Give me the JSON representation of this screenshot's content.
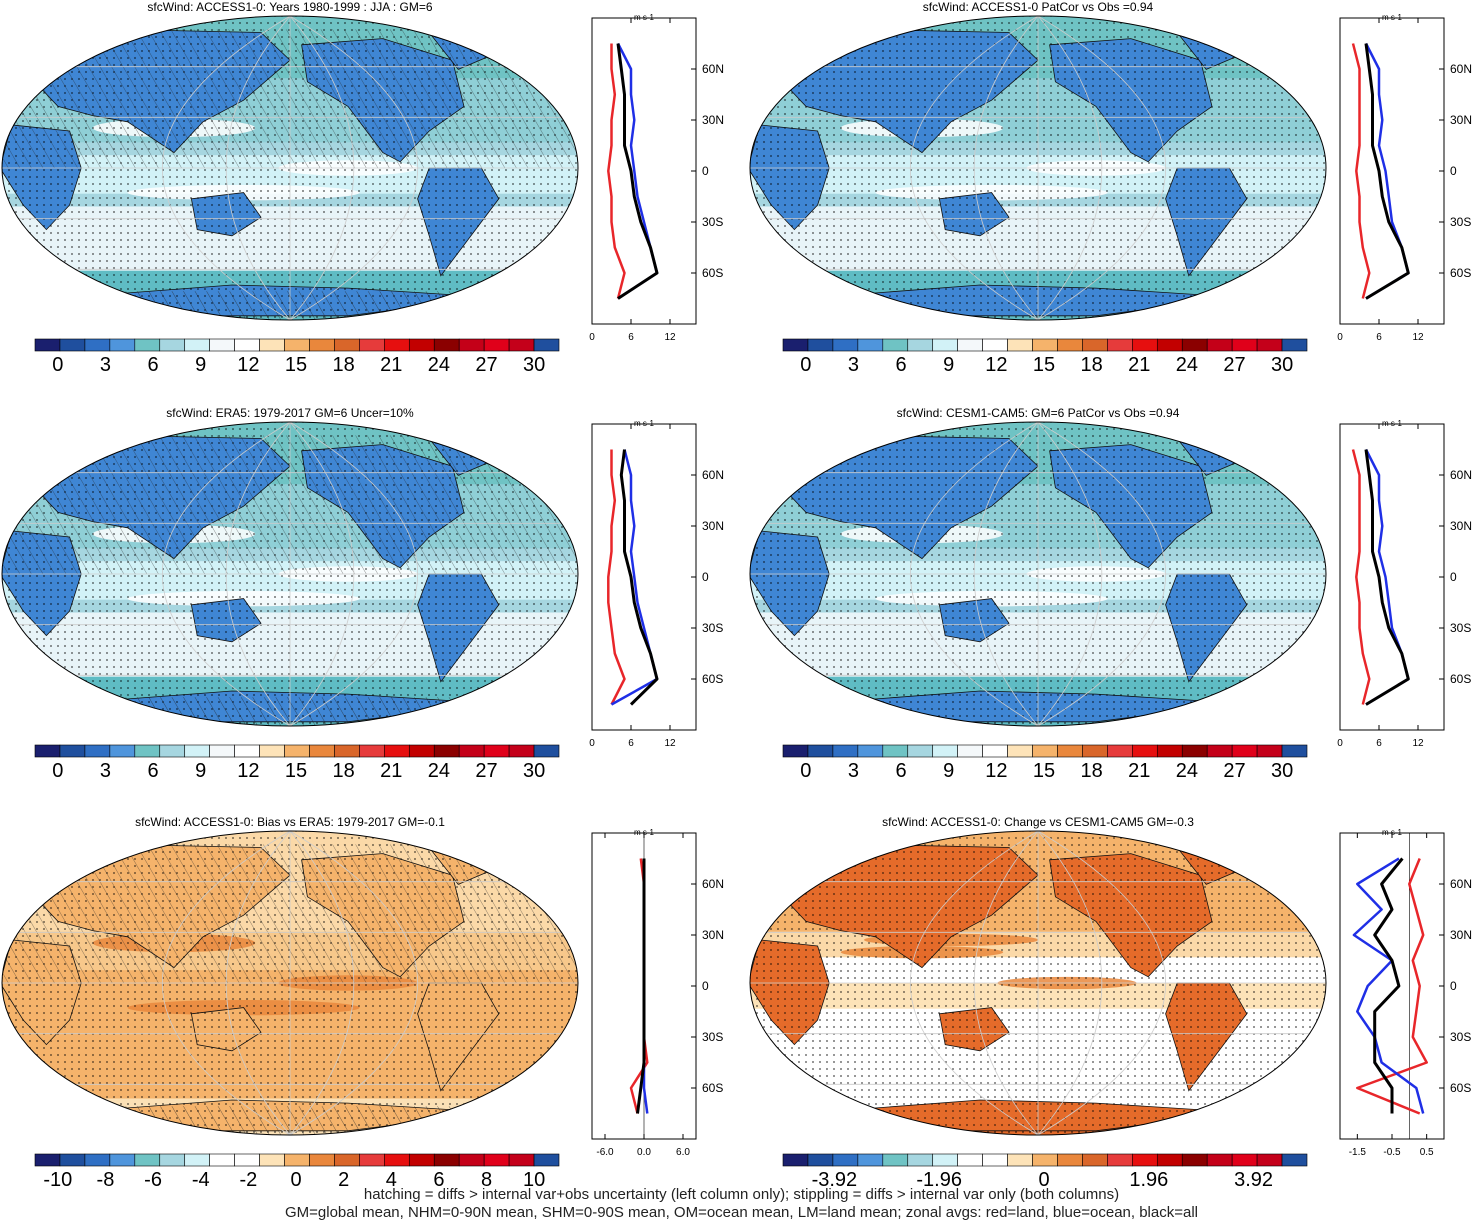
{
  "colors": {
    "land": "#e8262a",
    "ocean": "#1f2fe6",
    "all": "#000000"
  },
  "palette_abs": [
    "#1a1f6e",
    "#1f4f9e",
    "#2f6fc4",
    "#4f95dc",
    "#6fc3c4",
    "#a6d6e0",
    "#d2f2f7",
    "#f4f8fa",
    "#ffffff",
    "#fde3b8",
    "#f5b36b",
    "#e9873c",
    "#d9662a",
    "#e63b3b",
    "#e60f0f",
    "#c20000",
    "#8b0000",
    "#c40018",
    "#e0001a",
    "#c4001a",
    "#1f4f9e"
  ],
  "palette_diff": [
    "#1a1f6e",
    "#1f4f9e",
    "#2f6fc4",
    "#4f95dc",
    "#6fc3c4",
    "#a6d6e0",
    "#d2f2f7",
    "#ffffff",
    "#ffffff",
    "#fde3b8",
    "#f5b36b",
    "#e9873c",
    "#d9662a",
    "#e63b3b",
    "#e60f0f",
    "#c20000",
    "#8b0000",
    "#c40018",
    "#e0001a",
    "#c4001a",
    "#1f4f9e"
  ],
  "units": "m s-1",
  "lat_ticks": [
    "60N",
    "30N",
    "0",
    "30S",
    "60S"
  ],
  "panels": [
    {
      "title": "sfcWind: ACCESS1-0: Years 1980-1999 : JJA : GM=6",
      "base": "mid",
      "cb_labels": [
        "0",
        "3",
        "6",
        "9",
        "12",
        "15",
        "18",
        "21",
        "24",
        "27",
        "30"
      ],
      "zonal_ticks": [
        "0",
        "6",
        "12"
      ],
      "zonal_range": [
        0,
        16
      ],
      "hatch": true
    },
    {
      "title": "sfcWind: ACCESS1-0 PatCor vs Obs =0.94",
      "base": "mid",
      "cb_labels": [
        "0",
        "3",
        "6",
        "9",
        "12",
        "15",
        "18",
        "21",
        "24",
        "27",
        "30"
      ],
      "zonal_ticks": [
        "0",
        "6",
        "12"
      ],
      "zonal_range": [
        0,
        16
      ],
      "hatch": false
    },
    {
      "title": "sfcWind: ERA5: 1979-2017 GM=6 Uncer=10%",
      "base": "mid",
      "cb_labels": [
        "0",
        "3",
        "6",
        "9",
        "12",
        "15",
        "18",
        "21",
        "24",
        "27",
        "30"
      ],
      "zonal_ticks": [
        "0",
        "6",
        "12"
      ],
      "zonal_range": [
        0,
        16
      ],
      "hatch": true
    },
    {
      "title": "sfcWind: CESM1-CAM5: GM=6 PatCor vs Obs =0.94",
      "base": "mid",
      "cb_labels": [
        "0",
        "3",
        "6",
        "9",
        "12",
        "15",
        "18",
        "21",
        "24",
        "27",
        "30"
      ],
      "zonal_ticks": [
        "0",
        "6",
        "12"
      ],
      "zonal_range": [
        0,
        16
      ],
      "hatch": false
    },
    {
      "title": "sfcWind: ACCESS1-0: Bias vs ERA5: 1979-2017 GM=-0.1",
      "base": "bias",
      "cb_labels": [
        "-10",
        "-8",
        "-6",
        "-4",
        "-2",
        "0",
        "2",
        "4",
        "6",
        "8",
        "10"
      ],
      "zonal_ticks": [
        "-6.0",
        "0.0",
        "6.0"
      ],
      "zonal_range": [
        -8,
        8
      ],
      "hatch": true
    },
    {
      "title": "sfcWind: ACCESS1-0: Change vs CESM1-CAM5 GM=-0.3",
      "base": "change",
      "cb_labels": [
        "-3.92",
        "-1.96",
        "0",
        "1.96",
        "3.92"
      ],
      "zonal_ticks": [
        "-1.5",
        "-0.5",
        "0.5"
      ],
      "zonal_range": [
        -2,
        1
      ],
      "hatch": false
    }
  ],
  "footer": {
    "line1": "hatching = diffs > internal var+obs uncertainty (left column only); stippling = diffs > internal var only (both columns)",
    "line2": "GM=global mean, NHM=0-90N mean, SHM=0-90S mean, OM=ocean mean, LM=land mean; zonal avgs: red=land, blue=ocean, black=all"
  },
  "chart_data": [
    {
      "type": "heatmap",
      "title": "sfcWind: ACCESS1-0: Years 1980-1999 : JJA : GM=6",
      "colorbar_ticks": [
        0,
        3,
        6,
        9,
        12,
        15,
        18,
        21,
        24,
        27,
        30
      ],
      "zonal": {
        "type": "line",
        "y_lat": [
          75,
          60,
          45,
          30,
          15,
          0,
          -15,
          -30,
          -45,
          -60,
          -75
        ],
        "series": [
          {
            "name": "land",
            "values": [
              3,
              3,
              3.5,
              3,
              3,
              2.5,
              3,
              3,
              3.5,
              5,
              4
            ]
          },
          {
            "name": "ocean",
            "values": [
              4,
              6,
              6,
              6.5,
              6,
              6.5,
              7,
              8,
              9,
              10,
              4
            ]
          },
          {
            "name": "all",
            "values": [
              4,
              4.5,
              5,
              5,
              5,
              6,
              6.5,
              7.5,
              9,
              10,
              4
            ]
          }
        ]
      }
    },
    {
      "type": "heatmap",
      "title": "sfcWind: ACCESS1-0 PatCor vs Obs =0.94",
      "colorbar_ticks": [
        0,
        3,
        6,
        9,
        12,
        15,
        18,
        21,
        24,
        27,
        30
      ],
      "zonal": {
        "type": "line",
        "y_lat": [
          75,
          60,
          45,
          30,
          15,
          0,
          -15,
          -30,
          -45,
          -60,
          -75
        ],
        "series": [
          {
            "name": "land",
            "values": [
              2,
              3,
              3,
              3,
              3,
              2.5,
              3,
              3,
              3.5,
              4.5,
              3.5
            ]
          },
          {
            "name": "ocean",
            "values": [
              4,
              6,
              6,
              6.5,
              6,
              7,
              7.5,
              8,
              9.5,
              10.5,
              4
            ]
          },
          {
            "name": "all",
            "values": [
              4,
              4.5,
              5,
              5,
              5,
              6,
              6.5,
              7.5,
              9.5,
              10.5,
              4
            ]
          }
        ]
      }
    },
    {
      "type": "heatmap",
      "title": "sfcWind: ERA5: 1979-2017 GM=6 Uncer=10%",
      "colorbar_ticks": [
        0,
        3,
        6,
        9,
        12,
        15,
        18,
        21,
        24,
        27,
        30
      ],
      "zonal": {
        "type": "line",
        "y_lat": [
          75,
          60,
          45,
          30,
          15,
          0,
          -15,
          -30,
          -45,
          -60,
          -75
        ],
        "series": [
          {
            "name": "land",
            "values": [
              3,
              3,
              3.5,
              3,
              3,
              2.5,
              2.5,
              3,
              3.5,
              5,
              3
            ]
          },
          {
            "name": "ocean",
            "values": [
              5,
              6,
              6,
              6.5,
              6,
              6.5,
              7,
              8,
              9,
              10,
              3
            ]
          },
          {
            "name": "all",
            "values": [
              5,
              4.5,
              5,
              5,
              5,
              6,
              6.5,
              7.5,
              9,
              10,
              6
            ]
          }
        ]
      }
    },
    {
      "type": "heatmap",
      "title": "sfcWind: CESM1-CAM5: GM=6 PatCor vs Obs =0.94",
      "colorbar_ticks": [
        0,
        3,
        6,
        9,
        12,
        15,
        18,
        21,
        24,
        27,
        30
      ],
      "zonal": {
        "type": "line",
        "y_lat": [
          75,
          60,
          45,
          30,
          15,
          0,
          -15,
          -30,
          -45,
          -60,
          -75
        ],
        "series": [
          {
            "name": "land",
            "values": [
              2,
              3,
              3,
              3,
              3,
              2.5,
              3,
              3,
              3.5,
              4.5,
              3.5
            ]
          },
          {
            "name": "ocean",
            "values": [
              4,
              6,
              6,
              6.5,
              6,
              7,
              7.5,
              8,
              9.5,
              10.5,
              4
            ]
          },
          {
            "name": "all",
            "values": [
              4,
              4.5,
              5,
              5,
              5,
              6,
              6.5,
              7.5,
              9.5,
              10.5,
              4
            ]
          }
        ]
      }
    },
    {
      "type": "heatmap",
      "title": "sfcWind: ACCESS1-0: Bias vs ERA5: 1979-2017 GM=-0.1",
      "colorbar_ticks": [
        -10,
        -8,
        -6,
        -4,
        -2,
        0,
        2,
        4,
        6,
        8,
        10
      ],
      "zonal": {
        "type": "line",
        "y_lat": [
          75,
          60,
          45,
          30,
          15,
          0,
          -15,
          -30,
          -45,
          -60,
          -75
        ],
        "series": [
          {
            "name": "land",
            "values": [
              -0.5,
              0,
              0,
              0,
              0,
              0,
              0,
              0,
              0.5,
              -2,
              -1
            ]
          },
          {
            "name": "ocean",
            "values": [
              0,
              0,
              0,
              0,
              0,
              0,
              0,
              0,
              0,
              0,
              0.5
            ]
          },
          {
            "name": "all",
            "values": [
              0,
              0,
              0,
              0,
              0,
              0,
              0,
              0,
              0,
              -0.5,
              -1
            ]
          }
        ]
      }
    },
    {
      "type": "heatmap",
      "title": "sfcWind: ACCESS1-0: Change vs CESM1-CAM5 GM=-0.3",
      "colorbar_ticks": [
        -3.92,
        -1.96,
        0,
        1.96,
        3.92
      ],
      "zonal": {
        "type": "line",
        "y_lat": [
          75,
          60,
          45,
          30,
          15,
          0,
          -15,
          -30,
          -45,
          -60,
          -75
        ],
        "series": [
          {
            "name": "land",
            "values": [
              0.3,
              0,
              0.2,
              0.4,
              0.1,
              0.3,
              0.2,
              0.1,
              0.5,
              -1.5,
              0.3
            ]
          },
          {
            "name": "ocean",
            "values": [
              -0.3,
              -1.5,
              -0.8,
              -1.6,
              -0.5,
              -1.2,
              -1.5,
              -1,
              -0.8,
              0.2,
              0.4
            ]
          },
          {
            "name": "all",
            "values": [
              -0.2,
              -0.8,
              -0.5,
              -1.0,
              -0.5,
              -0.3,
              -1,
              -1,
              -1,
              -0.5,
              -0.5
            ]
          }
        ]
      }
    }
  ]
}
